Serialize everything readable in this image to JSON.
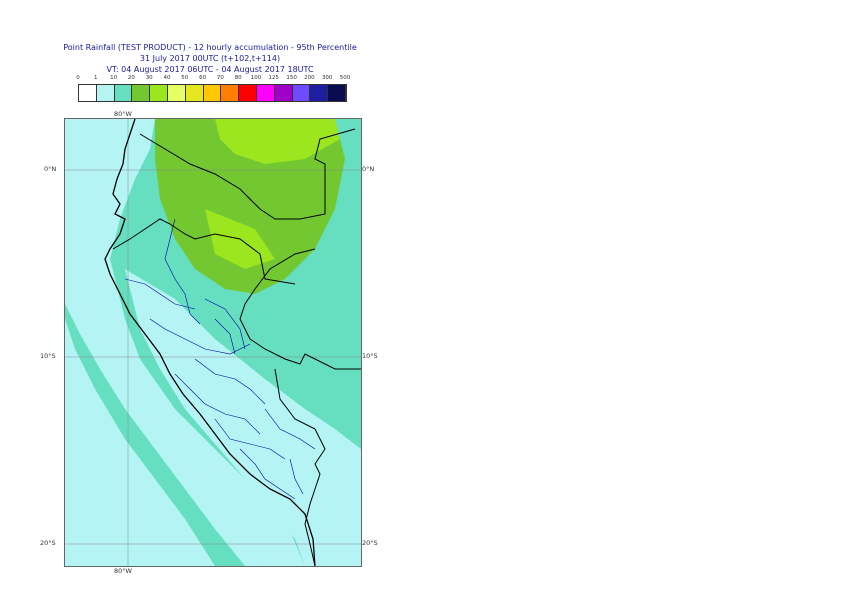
{
  "title": {
    "line1": "Point Rainfall (TEST PRODUCT) - 12 hourly accumulation - 95th Percentile",
    "line2": "31 July 2017 00UTC (t+102,t+114)",
    "line3": "VT: 04 August 2017 06UTC - 04 August 2017 18UTC"
  },
  "legend": {
    "thresholds": [
      "0",
      "1",
      "10",
      "20",
      "30",
      "40",
      "50",
      "60",
      "70",
      "80",
      "100",
      "125",
      "150",
      "200",
      "300",
      "500"
    ],
    "colors": [
      "#ffffff",
      "#b4f4f4",
      "#65dfc0",
      "#73c832",
      "#9be61e",
      "#e6ff64",
      "#e6e61e",
      "#ffc800",
      "#ff7d00",
      "#ff0000",
      "#ff00ff",
      "#a000c8",
      "#6e4bff",
      "#1e1ea0",
      "#0a0a50"
    ]
  },
  "axes": {
    "lon_top": "80°W",
    "lon_bottom": "80°W",
    "lat_0_left": "0°N",
    "lat_0_right": "0°N",
    "lat_10_left": "10°S",
    "lat_10_right": "10°S",
    "lat_20_left": "20°S",
    "lat_20_right": "20°S"
  },
  "map_colors": {
    "ocean_light": "#b4f4f4",
    "band_10_20": "#65dfc0",
    "band_20_30": "#73c832",
    "band_30_40": "#9be61e",
    "border_country": "#000000",
    "border_region": "#0000aa",
    "gridline": "#888888"
  }
}
